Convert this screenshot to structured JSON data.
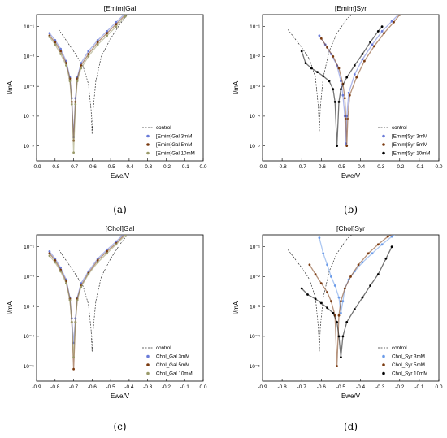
{
  "chart_data": [
    {
      "type": "line",
      "title": "[Emim]Gal",
      "xlabel": "Ewe/V",
      "ylabel": "I/mA",
      "caption": "(a)",
      "xlim": [
        -0.9,
        0.0
      ],
      "ylim_log10": [
        -5.5,
        -0.6
      ],
      "xticks": [
        "-0.9",
        "-0.8",
        "-0.7",
        "-0.6",
        "-0.5",
        "-0.4",
        "-0.3",
        "-0.2",
        "-0.1",
        "0.0"
      ],
      "yticks": [
        "10⁻⁵",
        "10⁻⁴",
        "10⁻³",
        "10⁻²",
        "10⁻¹"
      ],
      "legend_position": "bottom-right",
      "series": [
        {
          "name": "control",
          "color": "#333333",
          "style": "dashed",
          "x": [
            -0.78,
            -0.7,
            -0.65,
            -0.62,
            -0.605,
            -0.6,
            -0.595,
            -0.58,
            -0.55,
            -0.5,
            -0.45,
            -0.4
          ],
          "y": [
            0.08,
            0.015,
            0.005,
            0.0012,
            0.00015,
            2.5e-05,
            0.00015,
            0.0015,
            0.01,
            0.04,
            0.12,
            0.3
          ]
        },
        {
          "name": "[Emim]Gal 3mM",
          "color": "#6a7bd8",
          "style": "markers",
          "x": [
            -0.83,
            -0.8,
            -0.77,
            -0.74,
            -0.72,
            -0.71,
            -0.7,
            -0.69,
            -0.68,
            -0.66,
            -0.62,
            -0.57,
            -0.52,
            -0.47,
            -0.42
          ],
          "y": [
            0.06,
            0.035,
            0.018,
            0.007,
            0.002,
            0.0004,
            2e-05,
            0.0004,
            0.002,
            0.006,
            0.015,
            0.035,
            0.07,
            0.14,
            0.28
          ]
        },
        {
          "name": "[Emim]Gal 5mM",
          "color": "#7a3a10",
          "style": "markers",
          "x": [
            -0.83,
            -0.8,
            -0.77,
            -0.74,
            -0.72,
            -0.71,
            -0.7,
            -0.69,
            -0.68,
            -0.66,
            -0.62,
            -0.57,
            -0.52,
            -0.47,
            -0.42
          ],
          "y": [
            0.05,
            0.03,
            0.015,
            0.006,
            0.0018,
            0.0003,
            1.5e-05,
            0.0003,
            0.0018,
            0.005,
            0.012,
            0.03,
            0.06,
            0.12,
            0.25
          ]
        },
        {
          "name": "[Emim]Gal 10mM",
          "color": "#9a9a6a",
          "style": "markers",
          "x": [
            -0.83,
            -0.8,
            -0.77,
            -0.74,
            -0.72,
            -0.71,
            -0.7,
            -0.69,
            -0.68,
            -0.66,
            -0.62,
            -0.57,
            -0.52,
            -0.47,
            -0.42
          ],
          "y": [
            0.045,
            0.025,
            0.012,
            0.005,
            0.0015,
            0.00025,
            6e-06,
            0.00025,
            0.0015,
            0.004,
            0.01,
            0.025,
            0.05,
            0.1,
            0.22
          ]
        }
      ]
    },
    {
      "type": "line",
      "title": "[Emim]Syr",
      "xlabel": "Ewe/V",
      "ylabel": "I/mA",
      "caption": "(b)",
      "xlim": [
        -0.9,
        0.0
      ],
      "ylim_log10": [
        -5.5,
        -0.6
      ],
      "xticks": [
        "-0.9",
        "-0.8",
        "-0.7",
        "-0.6",
        "-0.5",
        "-0.4",
        "-0.3",
        "-0.2",
        "-0.1",
        "0.0"
      ],
      "yticks": [
        "10⁻⁵",
        "10⁻⁴",
        "10⁻³",
        "10⁻²",
        "10⁻¹"
      ],
      "legend_position": "bottom-right",
      "series": [
        {
          "name": "control",
          "color": "#333333",
          "style": "dashed",
          "x": [
            -0.77,
            -0.7,
            -0.66,
            -0.63,
            -0.615,
            -0.61,
            -0.605,
            -0.59,
            -0.56,
            -0.52,
            -0.47,
            -0.42
          ],
          "y": [
            0.08,
            0.02,
            0.008,
            0.002,
            0.0002,
            3e-05,
            0.0002,
            0.002,
            0.015,
            0.06,
            0.18,
            0.35
          ]
        },
        {
          "name": "[Emim]Syr 3mM",
          "color": "#6a7bd8",
          "style": "markers",
          "x": [
            -0.61,
            -0.58,
            -0.55,
            -0.52,
            -0.5,
            -0.49,
            -0.48,
            -0.475,
            -0.47,
            -0.46,
            -0.43,
            -0.39,
            -0.34,
            -0.29,
            -0.24,
            -0.2
          ],
          "y": [
            0.05,
            0.025,
            0.012,
            0.005,
            0.0015,
            0.0005,
            0.0001,
            1.2e-05,
            0.0001,
            0.0006,
            0.0025,
            0.008,
            0.025,
            0.07,
            0.15,
            0.28
          ]
        },
        {
          "name": "[Emim]Syr 5mM",
          "color": "#7a3a10",
          "style": "markers",
          "x": [
            -0.6,
            -0.57,
            -0.54,
            -0.51,
            -0.49,
            -0.48,
            -0.475,
            -0.47,
            -0.465,
            -0.455,
            -0.42,
            -0.38,
            -0.33,
            -0.28,
            -0.23,
            -0.2
          ],
          "y": [
            0.04,
            0.02,
            0.01,
            0.004,
            0.0012,
            0.0004,
            8e-05,
            1e-05,
            8e-05,
            0.0005,
            0.002,
            0.007,
            0.022,
            0.06,
            0.14,
            0.25
          ]
        },
        {
          "name": "[Emim]Syr 10mM",
          "color": "#000000",
          "style": "markers",
          "x": [
            -0.7,
            -0.68,
            -0.65,
            -0.62,
            -0.59,
            -0.56,
            -0.54,
            -0.53,
            -0.52,
            -0.51,
            -0.5,
            -0.47,
            -0.43,
            -0.39,
            -0.35,
            -0.31,
            -0.29
          ],
          "y": [
            0.015,
            0.006,
            0.004,
            0.003,
            0.0022,
            0.0015,
            0.0008,
            0.0003,
            1e-05,
            0.0003,
            0.0008,
            0.002,
            0.005,
            0.012,
            0.03,
            0.07,
            0.1
          ]
        }
      ]
    },
    {
      "type": "line",
      "title": "[Chol]Gal",
      "xlabel": "Ewe/V",
      "ylabel": "I/mA",
      "caption": "(c)",
      "xlim": [
        -0.9,
        0.0
      ],
      "ylim_log10": [
        -5.5,
        -0.6
      ],
      "xticks": [
        "-0.9",
        "-0.8",
        "-0.7",
        "-0.6",
        "-0.5",
        "-0.4",
        "-0.3",
        "-0.2",
        "-0.1",
        "0.0"
      ],
      "yticks": [
        "10⁻⁵",
        "10⁻⁴",
        "10⁻³",
        "10⁻²",
        "10⁻¹"
      ],
      "legend_position": "bottom-right",
      "series": [
        {
          "name": "control",
          "color": "#333333",
          "style": "dashed",
          "x": [
            -0.78,
            -0.7,
            -0.65,
            -0.62,
            -0.605,
            -0.6,
            -0.595,
            -0.58,
            -0.55,
            -0.5,
            -0.45,
            -0.4
          ],
          "y": [
            0.08,
            0.015,
            0.005,
            0.0012,
            0.00015,
            3e-05,
            0.00015,
            0.0015,
            0.01,
            0.04,
            0.12,
            0.3
          ]
        },
        {
          "name": "Chol_Gal 3mM",
          "color": "#6a7bd8",
          "style": "markers",
          "x": [
            -0.83,
            -0.8,
            -0.77,
            -0.74,
            -0.72,
            -0.71,
            -0.7,
            -0.69,
            -0.68,
            -0.66,
            -0.62,
            -0.57,
            -0.52,
            -0.47,
            -0.42
          ],
          "y": [
            0.07,
            0.04,
            0.02,
            0.008,
            0.002,
            0.0004,
            6e-05,
            0.0004,
            0.002,
            0.006,
            0.015,
            0.04,
            0.08,
            0.15,
            0.3
          ]
        },
        {
          "name": "Chol_Gal 5mM",
          "color": "#7a3a10",
          "style": "markers",
          "x": [
            -0.83,
            -0.8,
            -0.77,
            -0.74,
            -0.72,
            -0.71,
            -0.7,
            -0.69,
            -0.68,
            -0.66,
            -0.62,
            -0.57,
            -0.52,
            -0.47,
            -0.42
          ],
          "y": [
            0.06,
            0.035,
            0.017,
            0.007,
            0.0018,
            0.0003,
            8e-06,
            0.0003,
            0.0018,
            0.005,
            0.013,
            0.035,
            0.07,
            0.13,
            0.27
          ]
        },
        {
          "name": "Chol_Gal 10mM",
          "color": "#9a9a6a",
          "style": "markers",
          "x": [
            -0.83,
            -0.8,
            -0.77,
            -0.74,
            -0.72,
            -0.71,
            -0.7,
            -0.69,
            -0.68,
            -0.66,
            -0.62,
            -0.57,
            -0.52,
            -0.47,
            -0.42
          ],
          "y": [
            0.05,
            0.03,
            0.015,
            0.006,
            0.0016,
            0.0003,
            2e-05,
            0.0003,
            0.0016,
            0.0045,
            0.012,
            0.03,
            0.06,
            0.12,
            0.24
          ]
        }
      ]
    },
    {
      "type": "line",
      "title": "[Chol]Syr",
      "xlabel": "Ewe/V",
      "ylabel": "I/mA",
      "caption": "(d)",
      "xlim": [
        -0.9,
        0.0
      ],
      "ylim_log10": [
        -5.5,
        -0.6
      ],
      "xticks": [
        "-0.9",
        "-0.8",
        "-0.7",
        "-0.6",
        "-0.5",
        "-0.4",
        "-0.3",
        "-0.2",
        "-0.1",
        "0.0"
      ],
      "yticks": [
        "10⁻⁵",
        "10⁻⁴",
        "10⁻³",
        "10⁻²",
        "10⁻¹"
      ],
      "legend_position": "bottom-right",
      "series": [
        {
          "name": "control",
          "color": "#333333",
          "style": "dashed",
          "x": [
            -0.77,
            -0.7,
            -0.66,
            -0.63,
            -0.615,
            -0.61,
            -0.605,
            -0.59,
            -0.56,
            -0.52,
            -0.47,
            -0.42
          ],
          "y": [
            0.08,
            0.02,
            0.008,
            0.002,
            0.0002,
            3e-05,
            0.0002,
            0.002,
            0.015,
            0.06,
            0.18,
            0.35
          ]
        },
        {
          "name": "Chol_Syr 3mM",
          "color": "#6a9ae8",
          "style": "markers",
          "x": [
            -0.61,
            -0.59,
            -0.57,
            -0.55,
            -0.53,
            -0.51,
            -0.5,
            -0.49,
            -0.48,
            -0.46,
            -0.43,
            -0.39,
            -0.34,
            -0.29,
            -0.24,
            -0.21
          ],
          "y": [
            0.2,
            0.06,
            0.025,
            0.01,
            0.005,
            0.002,
            0.0006,
            0.0015,
            0.004,
            0.008,
            0.015,
            0.03,
            0.06,
            0.12,
            0.22,
            0.3
          ]
        },
        {
          "name": "Chol_Syr 5mM",
          "color": "#7a3a10",
          "style": "markers",
          "x": [
            -0.66,
            -0.63,
            -0.6,
            -0.57,
            -0.55,
            -0.53,
            -0.52,
            -0.51,
            -0.5,
            -0.48,
            -0.45,
            -0.41,
            -0.36,
            -0.31,
            -0.26,
            -0.22
          ],
          "y": [
            0.025,
            0.012,
            0.006,
            0.003,
            0.0015,
            0.0005,
            1e-05,
            0.0005,
            0.0015,
            0.004,
            0.01,
            0.025,
            0.06,
            0.12,
            0.22,
            0.3
          ]
        },
        {
          "name": "Chol_Syr 10mM",
          "color": "#000000",
          "style": "markers",
          "x": [
            -0.7,
            -0.67,
            -0.63,
            -0.6,
            -0.57,
            -0.54,
            -0.52,
            -0.51,
            -0.5,
            -0.49,
            -0.47,
            -0.43,
            -0.39,
            -0.35,
            -0.31,
            -0.27,
            -0.24
          ],
          "y": [
            0.004,
            0.0025,
            0.0018,
            0.0013,
            0.0009,
            0.0006,
            0.0003,
            0.0001,
            2e-05,
            0.0001,
            0.0003,
            0.0008,
            0.002,
            0.005,
            0.012,
            0.04,
            0.1
          ]
        }
      ]
    }
  ]
}
